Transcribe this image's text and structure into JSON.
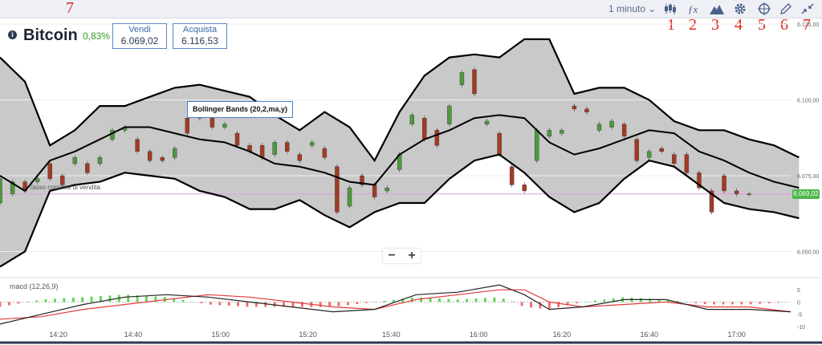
{
  "annotations": {
    "toolbar_left_mark": "7",
    "marks": [
      "1",
      "2",
      "3",
      "4",
      "5",
      "6",
      "7"
    ]
  },
  "toolbar": {
    "interval": "1 minuto",
    "icons": [
      "candlestick-icon",
      "function-icon",
      "mountain-chart-icon",
      "gear-icon",
      "crosshair-icon",
      "pencil-icon",
      "collapse-icon"
    ]
  },
  "instrument": {
    "name": "Bitcoin",
    "change": "0,83%"
  },
  "quotes": {
    "sell_label": "Vendi",
    "sell_value": "6.069,02",
    "buy_label": "Acquista",
    "buy_value": "6.116,53"
  },
  "indicator": {
    "bollinger_label": "Bollinger Bands (20,2,ma,y)",
    "macd_label": "macd (12,26,9)"
  },
  "spot_label": "Tasso corrente di vendita",
  "current_price": "6.069,02",
  "zoom": {
    "minus": "−",
    "plus": "+"
  },
  "colors": {
    "up": "#4c9a3c",
    "down": "#a43a24",
    "band_fill": "#c9c9c9",
    "band_line": "#000000",
    "spot_line": "#e79be6",
    "macd_line": "#222222",
    "signal_line": "#e23b3b",
    "hist_up": "#56d64f",
    "hist_down": "#f26a6a"
  },
  "chart_data": {
    "type": "line",
    "price_ylim": [
      6043,
      6125
    ],
    "y_ticks": [
      "6.125,00",
      "6.100,00",
      "6.075,00",
      "6.050,00"
    ],
    "y_tick_values": [
      6125,
      6100,
      6075,
      6050
    ],
    "x_ticks": [
      "14:20",
      "14:40",
      "15:00",
      "15:20",
      "15:40",
      "16:00",
      "16:20",
      "16:40",
      "17:00"
    ],
    "x_tick_minutes": [
      14,
      32,
      53,
      74,
      94,
      115,
      135,
      156,
      177
    ],
    "x_minutes_range": [
      0,
      190
    ],
    "bollinger_upper": [
      [
        0,
        6114
      ],
      [
        6,
        6106
      ],
      [
        12,
        6085
      ],
      [
        18,
        6090
      ],
      [
        24,
        6098
      ],
      [
        30,
        6098
      ],
      [
        36,
        6101
      ],
      [
        42,
        6104
      ],
      [
        48,
        6105
      ],
      [
        54,
        6103
      ],
      [
        60,
        6101
      ],
      [
        66,
        6095
      ],
      [
        72,
        6090
      ],
      [
        78,
        6096
      ],
      [
        84,
        6091
      ],
      [
        90,
        6080
      ],
      [
        96,
        6096
      ],
      [
        102,
        6108
      ],
      [
        108,
        6114
      ],
      [
        114,
        6115
      ],
      [
        120,
        6114
      ],
      [
        126,
        6120
      ],
      [
        132,
        6120
      ],
      [
        138,
        6102
      ],
      [
        144,
        6104
      ],
      [
        150,
        6104
      ],
      [
        156,
        6100
      ],
      [
        162,
        6093
      ],
      [
        168,
        6090
      ],
      [
        174,
        6090
      ],
      [
        180,
        6087
      ],
      [
        186,
        6085
      ],
      [
        192,
        6081
      ]
    ],
    "bollinger_middle": [
      [
        0,
        6075
      ],
      [
        6,
        6070
      ],
      [
        12,
        6080
      ],
      [
        18,
        6083
      ],
      [
        24,
        6087
      ],
      [
        30,
        6091
      ],
      [
        36,
        6091
      ],
      [
        42,
        6089
      ],
      [
        48,
        6087
      ],
      [
        54,
        6086
      ],
      [
        60,
        6083
      ],
      [
        66,
        6079
      ],
      [
        72,
        6078
      ],
      [
        78,
        6076
      ],
      [
        84,
        6073
      ],
      [
        90,
        6072
      ],
      [
        96,
        6082
      ],
      [
        102,
        6087
      ],
      [
        108,
        6090
      ],
      [
        114,
        6094
      ],
      [
        120,
        6095
      ],
      [
        126,
        6094
      ],
      [
        132,
        6086
      ],
      [
        138,
        6082
      ],
      [
        144,
        6084
      ],
      [
        150,
        6087
      ],
      [
        156,
        6090
      ],
      [
        162,
        6089
      ],
      [
        168,
        6083
      ],
      [
        174,
        6080
      ],
      [
        180,
        6076
      ],
      [
        186,
        6073
      ],
      [
        192,
        6071
      ]
    ],
    "bollinger_lower": [
      [
        0,
        6045
      ],
      [
        6,
        6050
      ],
      [
        12,
        6070
      ],
      [
        18,
        6072
      ],
      [
        24,
        6073
      ],
      [
        30,
        6076
      ],
      [
        36,
        6075
      ],
      [
        42,
        6074
      ],
      [
        48,
        6070
      ],
      [
        54,
        6068
      ],
      [
        60,
        6064
      ],
      [
        66,
        6064
      ],
      [
        72,
        6067
      ],
      [
        78,
        6062
      ],
      [
        84,
        6058
      ],
      [
        90,
        6063
      ],
      [
        96,
        6066
      ],
      [
        102,
        6066
      ],
      [
        108,
        6074
      ],
      [
        114,
        6080
      ],
      [
        120,
        6082
      ],
      [
        126,
        6076
      ],
      [
        132,
        6068
      ],
      [
        138,
        6063
      ],
      [
        144,
        6066
      ],
      [
        150,
        6074
      ],
      [
        156,
        6080
      ],
      [
        162,
        6078
      ],
      [
        168,
        6072
      ],
      [
        174,
        6066
      ],
      [
        180,
        6064
      ],
      [
        186,
        6063
      ],
      [
        192,
        6061
      ]
    ],
    "candles": [
      [
        0,
        6066,
        6074
      ],
      [
        3,
        6069,
        6073
      ],
      [
        6,
        6073,
        6070
      ],
      [
        9,
        6073,
        6074
      ],
      [
        12,
        6079,
        6074
      ],
      [
        15,
        6075,
        6072
      ],
      [
        18,
        6079,
        6081
      ],
      [
        21,
        6079,
        6076
      ],
      [
        24,
        6079,
        6081
      ],
      [
        27,
        6087,
        6090
      ],
      [
        30,
        6090,
        6091
      ],
      [
        33,
        6087,
        6083
      ],
      [
        36,
        6083,
        6080
      ],
      [
        39,
        6081,
        6080
      ],
      [
        42,
        6081,
        6084
      ],
      [
        45,
        6094,
        6089
      ],
      [
        48,
        6096,
        6094
      ],
      [
        51,
        6095,
        6091
      ],
      [
        54,
        6091,
        6092
      ],
      [
        57,
        6089,
        6085
      ],
      [
        60,
        6085,
        6083
      ],
      [
        63,
        6085,
        6081
      ],
      [
        66,
        6082,
        6086
      ],
      [
        69,
        6086,
        6083
      ],
      [
        72,
        6082,
        6080
      ],
      [
        75,
        6085,
        6086
      ],
      [
        78,
        6084,
        6081
      ],
      [
        81,
        6078,
        6063
      ],
      [
        84,
        6065,
        6071
      ],
      [
        87,
        6075,
        6072
      ],
      [
        90,
        6072,
        6068
      ],
      [
        93,
        6070,
        6071
      ],
      [
        96,
        6077,
        6082
      ],
      [
        99,
        6092,
        6095
      ],
      [
        102,
        6094,
        6087
      ],
      [
        105,
        6090,
        6085
      ],
      [
        108,
        6092,
        6098
      ],
      [
        111,
        6105,
        6109
      ],
      [
        114,
        6110,
        6102
      ],
      [
        117,
        6092,
        6093
      ],
      [
        120,
        6089,
        6082
      ],
      [
        123,
        6078,
        6072
      ],
      [
        126,
        6072,
        6070
      ],
      [
        129,
        6080,
        6090
      ],
      [
        132,
        6088,
        6090
      ],
      [
        135,
        6089,
        6090
      ],
      [
        138,
        6098,
        6097
      ],
      [
        141,
        6097,
        6096
      ],
      [
        144,
        6090,
        6092
      ],
      [
        147,
        6091,
        6093
      ],
      [
        150,
        6092,
        6088
      ],
      [
        153,
        6087,
        6080
      ],
      [
        156,
        6081,
        6083
      ],
      [
        159,
        6084,
        6083
      ],
      [
        162,
        6082,
        6079
      ],
      [
        165,
        6082,
        6076
      ],
      [
        168,
        6076,
        6071
      ],
      [
        171,
        6070,
        6063
      ],
      [
        174,
        6075,
        6070
      ],
      [
        177,
        6070,
        6069
      ],
      [
        180,
        6069,
        6069
      ]
    ],
    "macd_ylim": [
      -11,
      8
    ],
    "macd_ticks": [
      "5",
      "0",
      "-5",
      "-10"
    ],
    "macd_tick_values": [
      5,
      0,
      -5,
      -10
    ],
    "macd": [
      [
        0,
        -9
      ],
      [
        10,
        -5
      ],
      [
        20,
        -1
      ],
      [
        30,
        2
      ],
      [
        40,
        3
      ],
      [
        50,
        2
      ],
      [
        60,
        0
      ],
      [
        70,
        -2
      ],
      [
        80,
        -4
      ],
      [
        90,
        -3
      ],
      [
        100,
        3
      ],
      [
        110,
        4
      ],
      [
        120,
        7
      ],
      [
        126,
        3
      ],
      [
        132,
        -3
      ],
      [
        140,
        -2
      ],
      [
        150,
        1
      ],
      [
        160,
        1
      ],
      [
        170,
        -3
      ],
      [
        180,
        -3
      ],
      [
        190,
        -4
      ]
    ],
    "macd_signal": [
      [
        0,
        -7
      ],
      [
        10,
        -6
      ],
      [
        20,
        -3
      ],
      [
        30,
        -1
      ],
      [
        40,
        1
      ],
      [
        50,
        3
      ],
      [
        60,
        2
      ],
      [
        70,
        0
      ],
      [
        80,
        -2
      ],
      [
        90,
        -3
      ],
      [
        100,
        1
      ],
      [
        110,
        3
      ],
      [
        120,
        5
      ],
      [
        126,
        5
      ],
      [
        132,
        0
      ],
      [
        140,
        -2
      ],
      [
        150,
        -1
      ],
      [
        160,
        0
      ],
      [
        170,
        -2
      ],
      [
        180,
        -2
      ],
      [
        190,
        -4
      ]
    ]
  }
}
